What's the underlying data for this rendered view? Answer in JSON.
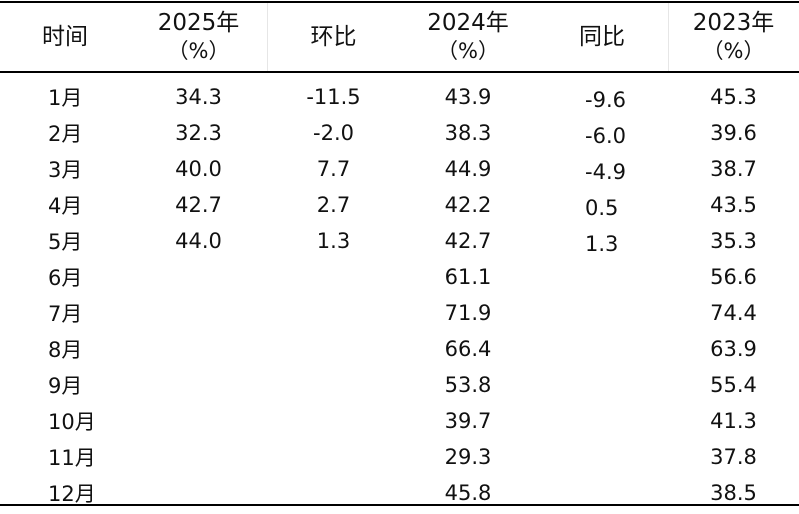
{
  "table": {
    "headers": {
      "time": "时间",
      "y2025": "2025年",
      "y2025_unit": "（%）",
      "mom": "环比",
      "y2024": "2024年",
      "y2024_unit": "（%）",
      "yoy": "同比",
      "y2023": "2023年",
      "y2023_unit": "（%）"
    },
    "rows": [
      {
        "month": "1月",
        "y2025": "34.3",
        "mom": "-11.5",
        "y2024": "43.9",
        "yoy": "-9.6",
        "y2023": "45.3"
      },
      {
        "month": "2月",
        "y2025": "32.3",
        "mom": "-2.0",
        "y2024": "38.3",
        "yoy": "-6.0",
        "y2023": "39.6"
      },
      {
        "month": "3月",
        "y2025": "40.0",
        "mom": "7.7",
        "y2024": "44.9",
        "yoy": "-4.9",
        "y2023": "38.7"
      },
      {
        "month": "4月",
        "y2025": "42.7",
        "mom": "2.7",
        "y2024": "42.2",
        "yoy": "0.5",
        "y2023": "43.5"
      },
      {
        "month": "5月",
        "y2025": "44.0",
        "mom": "1.3",
        "y2024": "42.7",
        "yoy": "1.3",
        "y2023": "35.3"
      },
      {
        "month": "6月",
        "y2025": "",
        "mom": "",
        "y2024": "61.1",
        "yoy": "",
        "y2023": "56.6"
      },
      {
        "month": "7月",
        "y2025": "",
        "mom": "",
        "y2024": "71.9",
        "yoy": "",
        "y2023": "74.4"
      },
      {
        "month": "8月",
        "y2025": "",
        "mom": "",
        "y2024": "66.4",
        "yoy": "",
        "y2023": "63.9"
      },
      {
        "month": "9月",
        "y2025": "",
        "mom": "",
        "y2024": "53.8",
        "yoy": "",
        "y2023": "55.4"
      },
      {
        "month": "10月",
        "y2025": "",
        "mom": "",
        "y2024": "39.7",
        "yoy": "",
        "y2023": "41.3"
      },
      {
        "month": "11月",
        "y2025": "",
        "mom": "",
        "y2024": "29.3",
        "yoy": "",
        "y2023": "37.8"
      },
      {
        "month": "12月",
        "y2025": "",
        "mom": "",
        "y2024": "45.8",
        "yoy": "",
        "y2023": "38.5"
      }
    ]
  }
}
